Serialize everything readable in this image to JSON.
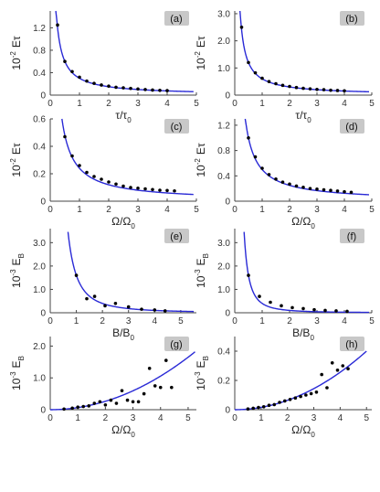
{
  "colors": {
    "curve": "#2a2ad6",
    "points": "#000000",
    "axis": "#444444",
    "tag_bg": "#c8c8c8"
  },
  "chart_data": [
    {
      "type": "scatter",
      "tag": "(a)",
      "xlabel": {
        "main": "τ/τ",
        "sub": "0"
      },
      "ylabel": {
        "pre": "10",
        "sup": "-2",
        "main": "Eτ"
      },
      "xlim": [
        0,
        5
      ],
      "ylim": [
        0,
        1.5
      ],
      "xticks": [
        "0",
        "1",
        "2",
        "3",
        "4",
        "5"
      ],
      "xtick_values": [
        0,
        1,
        2,
        3,
        4,
        5
      ],
      "yticks": [
        "0",
        "0.4",
        "0.8",
        "1.2"
      ],
      "ytick_values": [
        0,
        0.4,
        0.8,
        1.2
      ],
      "points": {
        "x": [
          0.25,
          0.5,
          0.75,
          1.0,
          1.25,
          1.5,
          1.75,
          2.0,
          2.25,
          2.5,
          2.75,
          3.0,
          3.25,
          3.5,
          3.75,
          4.0
        ],
        "y": [
          1.25,
          0.6,
          0.42,
          0.32,
          0.25,
          0.21,
          0.18,
          0.16,
          0.14,
          0.13,
          0.12,
          0.11,
          0.1,
          0.09,
          0.085,
          0.08
        ]
      },
      "curve": {
        "k": 0.3,
        "x_start": 0.19,
        "x_end": 4.9
      }
    },
    {
      "type": "scatter",
      "tag": "(b)",
      "xlabel": {
        "main": "τ/τ",
        "sub": "0"
      },
      "ylabel": {
        "pre": "10",
        "sup": "-2",
        "main": "Eτ"
      },
      "xlim": [
        0,
        5
      ],
      "ylim": [
        0,
        3.1
      ],
      "xticks": [
        "0",
        "1",
        "2",
        "3",
        "4",
        "5"
      ],
      "xtick_values": [
        0,
        1,
        2,
        3,
        4,
        5
      ],
      "yticks": [
        "0",
        "1.0",
        "2.0",
        "3.0"
      ],
      "ytick_values": [
        0,
        1,
        2,
        3
      ],
      "points": {
        "x": [
          0.25,
          0.5,
          0.75,
          1.0,
          1.25,
          1.5,
          1.75,
          2.0,
          2.25,
          2.5,
          2.75,
          3.0,
          3.25,
          3.5,
          3.75,
          4.0
        ],
        "y": [
          2.5,
          1.2,
          0.82,
          0.62,
          0.5,
          0.42,
          0.36,
          0.32,
          0.28,
          0.25,
          0.23,
          0.21,
          0.2,
          0.18,
          0.17,
          0.16
        ]
      },
      "curve": {
        "k": 0.6,
        "x_start": 0.19,
        "x_end": 4.9
      }
    },
    {
      "type": "scatter",
      "tag": "(c)",
      "xlabel": {
        "main": "Ω/Ω",
        "sub": "0"
      },
      "ylabel": {
        "pre": "10",
        "sup": "-2",
        "main": "Eτ"
      },
      "xlim": [
        0,
        5
      ],
      "ylim": [
        0,
        0.6
      ],
      "xticks": [
        "0",
        "1",
        "2",
        "3",
        "4",
        "5"
      ],
      "xtick_values": [
        0,
        1,
        2,
        3,
        4,
        5
      ],
      "yticks": [
        "0",
        "0.2",
        "0.4",
        "0.6"
      ],
      "ytick_values": [
        0,
        0.2,
        0.4,
        0.6
      ],
      "points": {
        "x": [
          0.5,
          0.75,
          1.0,
          1.25,
          1.5,
          1.75,
          2.0,
          2.25,
          2.5,
          2.75,
          3.0,
          3.25,
          3.5,
          3.75,
          4.0,
          4.25
        ],
        "y": [
          0.47,
          0.33,
          0.26,
          0.21,
          0.18,
          0.16,
          0.14,
          0.125,
          0.11,
          0.1,
          0.095,
          0.09,
          0.085,
          0.08,
          0.078,
          0.075
        ]
      },
      "curve": {
        "k": 0.24,
        "x_start": 0.4,
        "x_end": 4.9
      }
    },
    {
      "type": "scatter",
      "tag": "(d)",
      "xlabel": {
        "main": "Ω/Ω",
        "sub": "0"
      },
      "ylabel": {
        "pre": "10",
        "sup": "-2",
        "main": "Eτ"
      },
      "xlim": [
        0,
        5
      ],
      "ylim": [
        0,
        1.3
      ],
      "xticks": [
        "0",
        "1",
        "2",
        "3",
        "4",
        "5"
      ],
      "xtick_values": [
        0,
        1,
        2,
        3,
        4,
        5
      ],
      "yticks": [
        "0",
        "0.4",
        "0.8",
        "1.2"
      ],
      "ytick_values": [
        0,
        0.4,
        0.8,
        1.2
      ],
      "points": {
        "x": [
          0.5,
          0.75,
          1.0,
          1.25,
          1.5,
          1.75,
          2.0,
          2.25,
          2.5,
          2.75,
          3.0,
          3.25,
          3.5,
          3.75,
          4.0,
          4.25
        ],
        "y": [
          1.0,
          0.7,
          0.52,
          0.42,
          0.35,
          0.3,
          0.27,
          0.24,
          0.22,
          0.2,
          0.19,
          0.18,
          0.17,
          0.16,
          0.15,
          0.14
        ]
      },
      "curve": {
        "k": 0.5,
        "x_start": 0.38,
        "x_end": 4.9
      }
    },
    {
      "type": "scatter",
      "tag": "(e)",
      "xlabel": {
        "main": "B/B",
        "sub": "0"
      },
      "ylabel": {
        "pre": "10",
        "sup": "-3",
        "main": "E",
        "main_sub": "B"
      },
      "xlim": [
        0,
        5.6
      ],
      "ylim": [
        0,
        3.6
      ],
      "xticks": [
        "0",
        "1",
        "2",
        "3",
        "4",
        "5"
      ],
      "xtick_values": [
        0,
        1,
        2,
        3,
        4,
        5
      ],
      "yticks": [
        "0",
        "1.0",
        "2.0",
        "3.0"
      ],
      "ytick_values": [
        0,
        1,
        2,
        3
      ],
      "points": {
        "x": [
          1.0,
          1.4,
          1.7,
          2.1,
          2.5,
          3.0,
          3.5,
          4.0,
          4.4
        ],
        "y": [
          1.6,
          0.6,
          0.7,
          0.3,
          0.4,
          0.25,
          0.15,
          0.12,
          0.08
        ]
      },
      "curve": {
        "k": 1.6,
        "p": 2,
        "x_start": 0.68,
        "x_end": 5.5
      }
    },
    {
      "type": "scatter",
      "tag": "(f)",
      "xlabel": {
        "main": "B/B",
        "sub": "0"
      },
      "ylabel": {
        "pre": "10",
        "sup": "-3",
        "main": "E",
        "main_sub": "B"
      },
      "xlim": [
        0,
        5
      ],
      "ylim": [
        0,
        3.6
      ],
      "xticks": [
        "0",
        "1",
        "2",
        "3",
        "4",
        "5"
      ],
      "xtick_values": [
        0,
        1,
        2,
        3,
        4,
        5
      ],
      "yticks": [
        "0",
        "1.0",
        "2.0",
        "3.0"
      ],
      "ytick_values": [
        0,
        1,
        2,
        3
      ],
      "points": {
        "x": [
          0.5,
          0.9,
          1.3,
          1.7,
          2.1,
          2.5,
          2.9,
          3.3,
          3.7,
          4.1
        ],
        "y": [
          1.6,
          0.7,
          0.45,
          0.3,
          0.22,
          0.18,
          0.13,
          0.1,
          0.08,
          0.06
        ]
      },
      "curve": {
        "k": 0.4,
        "p": 2,
        "x_start": 0.34,
        "x_end": 4.9
      }
    },
    {
      "type": "scatter",
      "tag": "(g)",
      "xlabel": {
        "main": "Ω/Ω",
        "sub": "0"
      },
      "ylabel": {
        "pre": "10",
        "sup": "-3",
        "main": "E",
        "main_sub": "B"
      },
      "xlim": [
        0,
        5.3
      ],
      "ylim": [
        0,
        2.3
      ],
      "xticks": [
        "0",
        "1",
        "2",
        "3",
        "4",
        "5"
      ],
      "xtick_values": [
        0,
        1,
        2,
        3,
        4,
        5
      ],
      "yticks": [
        "0",
        "1.0",
        "2.0"
      ],
      "ytick_values": [
        0,
        1,
        2
      ],
      "points": {
        "x": [
          0.5,
          0.8,
          1.0,
          1.2,
          1.4,
          1.6,
          1.8,
          2.0,
          2.2,
          2.4,
          2.6,
          2.8,
          3.0,
          3.2,
          3.4,
          3.6,
          3.8,
          4.0,
          4.2,
          4.4
        ],
        "y": [
          0.02,
          0.05,
          0.08,
          0.1,
          0.12,
          0.2,
          0.25,
          0.15,
          0.3,
          0.2,
          0.6,
          0.3,
          0.25,
          0.25,
          0.5,
          1.3,
          0.75,
          0.7,
          1.55,
          0.7
        ]
      },
      "curve": {
        "a": 0.066,
        "p": 2,
        "x_start": 0.0,
        "x_end": 5.25
      }
    },
    {
      "type": "scatter",
      "tag": "(h)",
      "xlabel": {
        "main": "Ω/Ω",
        "sub": "0"
      },
      "ylabel": {
        "pre": "10",
        "sup": "-3",
        "main": "E",
        "main_sub": "B"
      },
      "xlim": [
        0,
        5.2
      ],
      "ylim": [
        0,
        0.5
      ],
      "xticks": [
        "0",
        "1",
        "2",
        "3",
        "4",
        "5"
      ],
      "xtick_values": [
        0,
        1,
        2,
        3,
        4,
        5
      ],
      "yticks": [
        "0",
        "0.2",
        "0.4"
      ],
      "ytick_values": [
        0,
        0.2,
        0.4
      ],
      "points": {
        "x": [
          0.5,
          0.7,
          0.9,
          1.1,
          1.3,
          1.5,
          1.7,
          1.9,
          2.1,
          2.3,
          2.5,
          2.7,
          2.9,
          3.1,
          3.3,
          3.5,
          3.7,
          3.9,
          4.1,
          4.3
        ],
        "y": [
          0.005,
          0.01,
          0.015,
          0.02,
          0.03,
          0.035,
          0.05,
          0.06,
          0.07,
          0.08,
          0.09,
          0.1,
          0.11,
          0.12,
          0.24,
          0.15,
          0.32,
          0.27,
          0.3,
          0.28
        ]
      },
      "curve": {
        "a": 0.016,
        "p": 2,
        "x_start": 0.0,
        "x_end": 5.0
      }
    }
  ]
}
